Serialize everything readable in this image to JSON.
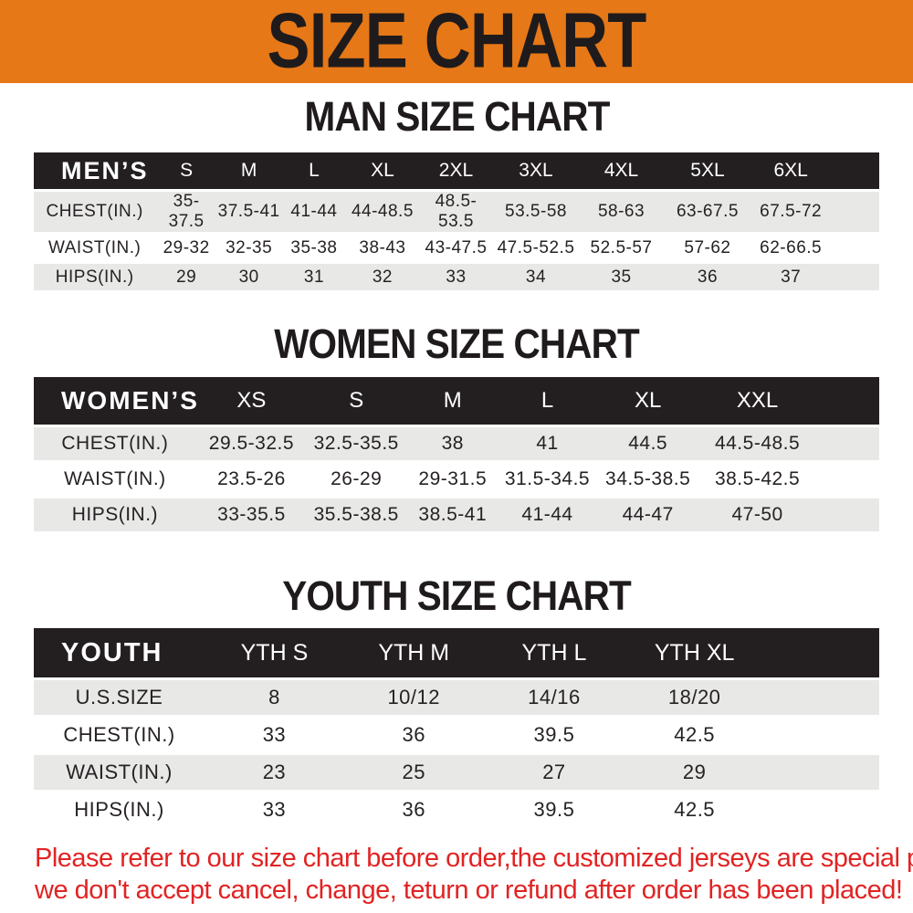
{
  "banner": {
    "title": "SIZE CHART"
  },
  "colors": {
    "banner_bg": "#E67817",
    "header_bar_bg": "#231E1F",
    "alt_row_bg": "#E8E8E7",
    "footer_text": "#E12323"
  },
  "sections": {
    "men": {
      "heading": "MAN SIZE CHART",
      "table": {
        "header": [
          "MEN’S",
          "S",
          "M",
          "L",
          "XL",
          "2XL",
          "3XL",
          "4XL",
          "5XL",
          "6XL"
        ],
        "rows": [
          {
            "label": "CHEST(IN.)",
            "values": [
              "35-37.5",
              "37.5-41",
              "41-44",
              "44-48.5",
              "48.5-53.5",
              "53.5-58",
              "58-63",
              "63-67.5",
              "67.5-72"
            ]
          },
          {
            "label": "WAIST(IN.)",
            "values": [
              "29-32",
              "32-35",
              "35-38",
              "38-43",
              "43-47.5",
              "47.5-52.5",
              "52.5-57",
              "57-62",
              "62-66.5"
            ]
          },
          {
            "label": "HIPS(IN.)",
            "values": [
              "29",
              "30",
              "31",
              "32",
              "33",
              "34",
              "35",
              "36",
              "37"
            ]
          }
        ]
      }
    },
    "women": {
      "heading": "WOMEN SIZE CHART",
      "table": {
        "header": [
          "WOMEN’S",
          "XS",
          "S",
          "M",
          "L",
          "XL",
          "XXL"
        ],
        "rows": [
          {
            "label": "CHEST(IN.)",
            "values": [
              "29.5-32.5",
              "32.5-35.5",
              "38",
              "41",
              "44.5",
              "44.5-48.5"
            ]
          },
          {
            "label": "WAIST(IN.)",
            "values": [
              "23.5-26",
              "26-29",
              "29-31.5",
              "31.5-34.5",
              "34.5-38.5",
              "38.5-42.5"
            ]
          },
          {
            "label": "HIPS(IN.)",
            "values": [
              "33-35.5",
              "35.5-38.5",
              "38.5-41",
              "41-44",
              "44-47",
              "47-50"
            ]
          }
        ]
      }
    },
    "youth": {
      "heading": "YOUTH SIZE CHART",
      "table": {
        "header": [
          "YOUTH",
          "YTH S",
          "YTH M",
          "YTH L",
          "YTH XL"
        ],
        "rows": [
          {
            "label": "U.S.SIZE",
            "values": [
              "8",
              "10/12",
              "14/16",
              "18/20"
            ]
          },
          {
            "label": "CHEST(IN.)",
            "values": [
              "33",
              "36",
              "39.5",
              "42.5"
            ]
          },
          {
            "label": "WAIST(IN.)",
            "values": [
              "23",
              "25",
              "27",
              "29"
            ]
          },
          {
            "label": "HIPS(IN.)",
            "values": [
              "33",
              "36",
              "39.5",
              "42.5"
            ]
          }
        ]
      }
    }
  },
  "footer": {
    "line1": "Please refer to our size chart before order,the customized jerseys are special products,",
    "line2": "we don't accept cancel, change, teturn or refund after order has been placed!"
  }
}
